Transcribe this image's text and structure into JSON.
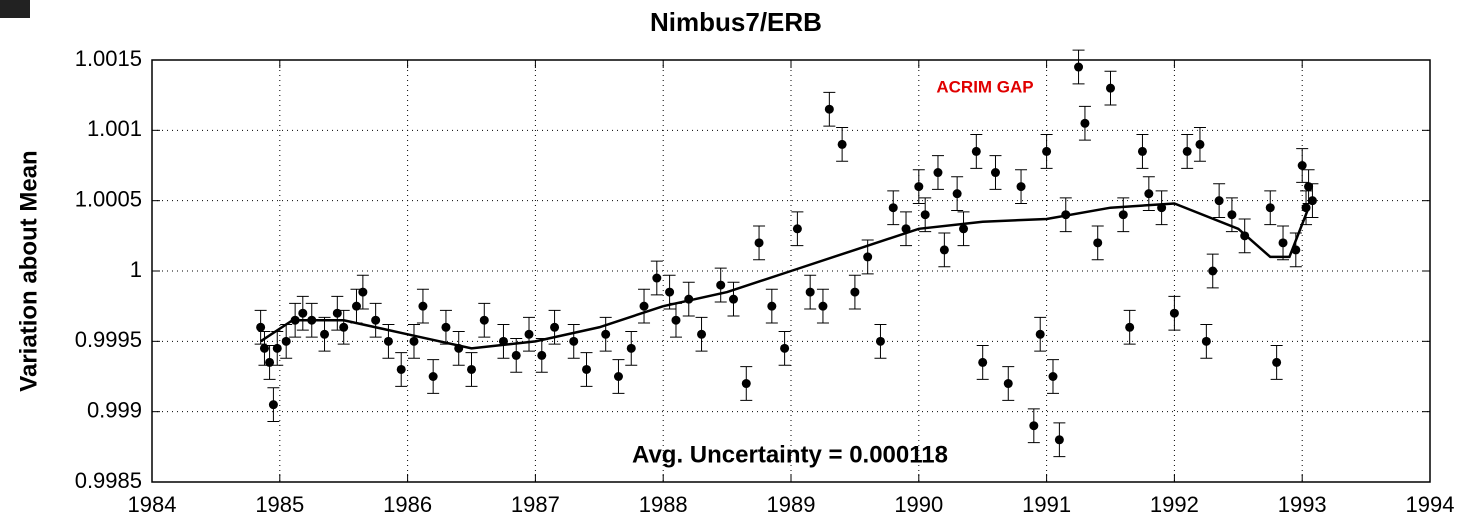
{
  "chart_data": {
    "type": "scatter",
    "title": "Nimbus7/ERB",
    "ylabel": "Variation about Mean",
    "xlim": [
      1984,
      1994
    ],
    "xticks": [
      1984,
      1985,
      1986,
      1987,
      1988,
      1989,
      1990,
      1991,
      1992,
      1993,
      1994
    ],
    "ylim": [
      0.9985,
      1.0015
    ],
    "yticks": [
      0.9985,
      0.999,
      0.9995,
      1,
      1.0005,
      1.001,
      1.0015
    ],
    "grid": true,
    "annotations": [
      {
        "text": "ACRIM GAP",
        "color": "#e00000"
      },
      {
        "text": "Avg. Uncertainty = 0.000118",
        "color": "#000000"
      }
    ],
    "series": [
      {
        "mode": "markers",
        "color": "#000000",
        "error": 0.00012,
        "x": [
          1984.85,
          1984.88,
          1984.92,
          1984.95,
          1984.98,
          1985.05,
          1985.12,
          1985.18,
          1985.25,
          1985.35,
          1985.45,
          1985.5,
          1985.6,
          1985.65,
          1985.75,
          1985.85,
          1985.95,
          1986.05,
          1986.12,
          1986.2,
          1986.3,
          1986.4,
          1986.5,
          1986.6,
          1986.75,
          1986.85,
          1986.95,
          1987.05,
          1987.15,
          1987.3,
          1987.4,
          1987.55,
          1987.65,
          1987.75,
          1987.85,
          1987.95,
          1988.05,
          1988.1,
          1988.2,
          1988.3,
          1988.45,
          1988.55,
          1988.65,
          1988.75,
          1988.85,
          1988.95,
          1989.05,
          1989.15,
          1989.25,
          1989.3,
          1989.4,
          1989.5,
          1989.6,
          1989.7,
          1989.8,
          1989.9,
          1990.0,
          1990.05,
          1990.15,
          1990.2,
          1990.3,
          1990.35,
          1990.45,
          1990.5,
          1990.6,
          1990.7,
          1990.8,
          1990.9,
          1990.95,
          1991.0,
          1991.05,
          1991.1,
          1991.15,
          1991.25,
          1991.3,
          1991.4,
          1991.5,
          1991.6,
          1991.65,
          1991.75,
          1991.8,
          1991.9,
          1992.0,
          1992.1,
          1992.2,
          1992.25,
          1992.3,
          1992.35,
          1992.45,
          1992.55,
          1992.75,
          1992.8,
          1992.85,
          1992.95,
          1993.0,
          1993.03,
          1993.05,
          1993.08
        ],
        "values": [
          0.9996,
          0.99945,
          0.99935,
          0.99905,
          0.99945,
          0.9995,
          0.99965,
          0.9997,
          0.99965,
          0.99955,
          0.9997,
          0.9996,
          0.99975,
          0.99985,
          0.99965,
          0.9995,
          0.9993,
          0.9995,
          0.99975,
          0.99925,
          0.9996,
          0.99945,
          0.9993,
          0.99965,
          0.9995,
          0.9994,
          0.99955,
          0.9994,
          0.9996,
          0.9995,
          0.9993,
          0.99955,
          0.99925,
          0.99945,
          0.99975,
          0.99995,
          0.99985,
          0.99965,
          0.9998,
          0.99955,
          0.9999,
          0.9998,
          0.9992,
          1.0002,
          0.99975,
          0.99945,
          1.0003,
          0.99985,
          0.99975,
          1.00115,
          1.0009,
          0.99985,
          1.0001,
          0.9995,
          1.00045,
          1.0003,
          1.0006,
          1.0004,
          1.0007,
          1.00015,
          1.00055,
          1.0003,
          1.00085,
          0.99935,
          1.0007,
          0.9992,
          1.0006,
          0.9989,
          0.99955,
          1.00085,
          0.99925,
          0.9988,
          1.0004,
          1.00145,
          1.00105,
          1.0002,
          1.0013,
          1.0004,
          0.9996,
          1.00085,
          1.00055,
          1.00045,
          0.9997,
          1.00085,
          1.0009,
          0.9995,
          1.0,
          1.0005,
          1.0004,
          1.00025,
          1.00045,
          0.99935,
          1.0002,
          1.00015,
          1.00075,
          1.00045,
          1.0006,
          1.0005
        ]
      },
      {
        "mode": "lines",
        "color": "#000000",
        "x": [
          1984.85,
          1985.1,
          1985.5,
          1986.0,
          1986.5,
          1987.0,
          1987.5,
          1988.0,
          1988.5,
          1989.0,
          1989.5,
          1990.0,
          1990.5,
          1991.0,
          1991.5,
          1992.0,
          1992.5,
          1992.75,
          1992.9,
          1993.05
        ],
        "values": [
          0.9995,
          0.99965,
          0.99965,
          0.99955,
          0.99945,
          0.9995,
          0.9996,
          0.99975,
          0.99985,
          1.0,
          1.00015,
          1.0003,
          1.00035,
          1.00037,
          1.00045,
          1.00048,
          1.0003,
          1.0001,
          1.0001,
          1.00045
        ]
      }
    ]
  }
}
